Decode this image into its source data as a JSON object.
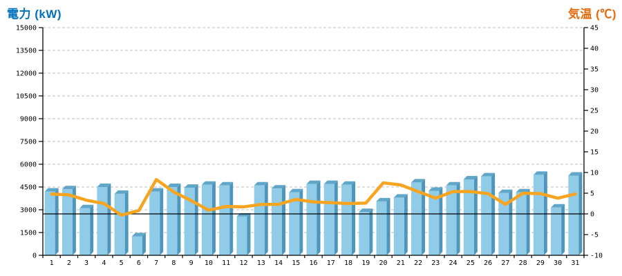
{
  "colors": {
    "background": "#FFFFFF",
    "bar_front": "#90CBE7",
    "bar_side": "#4E96BB",
    "bar_top": "#5FA6C8",
    "temperature_line": "#F7A520",
    "left_title": "#0070C0",
    "right_title": "#E8690B",
    "gridline": "#BBBBBB",
    "axis": "#000000",
    "zero_line": "#000000"
  },
  "chart_data": {
    "type": "combo (bar + line, dual axis)",
    "categories": [
      1,
      2,
      3,
      4,
      5,
      6,
      7,
      8,
      9,
      10,
      11,
      12,
      13,
      14,
      15,
      16,
      17,
      18,
      19,
      20,
      21,
      22,
      23,
      24,
      25,
      26,
      27,
      28,
      29,
      30,
      31
    ],
    "series": [
      {
        "name": "電力",
        "type": "bar",
        "axis": "left",
        "unit": "kW",
        "style": "3d-light-blue",
        "values": [
          4200,
          4350,
          3100,
          4500,
          4050,
          1250,
          4200,
          4500,
          4450,
          4650,
          4600,
          2550,
          4600,
          4400,
          4150,
          4700,
          4700,
          4650,
          2850,
          3550,
          3800,
          4800,
          4250,
          4600,
          5000,
          5200,
          4100,
          4150,
          5300,
          3150,
          5250
        ]
      },
      {
        "name": "気温",
        "type": "line",
        "axis": "right",
        "unit": "℃",
        "style": "thick-orange",
        "values": [
          4.8,
          4.6,
          3.3,
          2.5,
          -0.3,
          0.8,
          8.3,
          5.3,
          3.2,
          0.9,
          1.8,
          1.7,
          2.3,
          2.3,
          3.5,
          2.9,
          2.7,
          2.5,
          2.6,
          7.5,
          7.0,
          5.4,
          3.8,
          5.4,
          5.4,
          4.9,
          2.3,
          5.0,
          4.9,
          3.8,
          4.8
        ]
      }
    ],
    "left_axis": {
      "label": "電力 (kW)",
      "min": 0,
      "max": 15000,
      "tick_step": 1500
    },
    "right_axis": {
      "label": "気温 (℃)",
      "min": -10,
      "max": 45,
      "tick_step": 5
    },
    "x_axis": {
      "labels_are_days": true,
      "first": 1,
      "last": 31
    },
    "grid": {
      "horizontal": "dashed",
      "vertical": "none"
    },
    "zero_temperature_line": {
      "style": "solid black",
      "right_axis_value": 0
    },
    "legend": "none",
    "title": ""
  }
}
